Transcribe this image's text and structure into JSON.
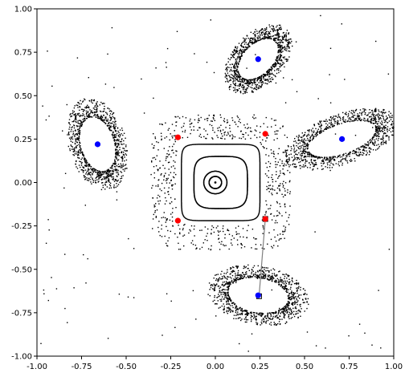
{
  "chart_data": {
    "type": "scatter",
    "xlim": [
      -1.0,
      1.0
    ],
    "ylim": [
      -1.0,
      1.0
    ],
    "grid": false,
    "x_ticks": [
      "-1.00",
      "-0.75",
      "-0.50",
      "-0.25",
      "0.00",
      "0.25",
      "0.50",
      "0.75",
      "1.00"
    ],
    "y_ticks": [
      "1.00",
      "0.75",
      "0.50",
      "0.25",
      "0.00",
      "-0.25",
      "-0.50",
      "-0.75",
      "-1.00"
    ],
    "tick_values": [
      -1.0,
      -0.75,
      -0.5,
      -0.25,
      0.0,
      0.25,
      0.5,
      0.75,
      1.0
    ],
    "colors": {
      "orbit": "#000000",
      "stable_points": "#0000ff",
      "unstable_points": "#ff0000",
      "trajectory_line": "#808080",
      "axes": "#000000",
      "background": "#ffffff"
    },
    "blue_points": [
      {
        "x": 0.0,
        "y": 0.0
      },
      {
        "x": 0.24,
        "y": 0.71
      },
      {
        "x": 0.71,
        "y": 0.25
      },
      {
        "x": -0.66,
        "y": 0.22
      },
      {
        "x": 0.24,
        "y": -0.65
      }
    ],
    "red_points": [
      {
        "x": -0.21,
        "y": 0.26
      },
      {
        "x": 0.28,
        "y": 0.28
      },
      {
        "x": -0.21,
        "y": -0.22
      },
      {
        "x": 0.28,
        "y": -0.21
      }
    ],
    "trajectory": [
      {
        "x": 0.28,
        "y": -0.21
      },
      {
        "x": 0.245,
        "y": -0.655
      }
    ],
    "closed_orbits": [
      {
        "kind": "circle",
        "radius": 0.035
      },
      {
        "kind": "circle",
        "radius": 0.065
      },
      {
        "kind": "rounded_square",
        "half_width": 0.15,
        "exponent": 4
      },
      {
        "kind": "rounded_square",
        "half_width": 0.22,
        "exponent": 8
      }
    ],
    "islands": [
      {
        "center": [
          0.24,
          0.71
        ],
        "angle_deg": 48,
        "rx": 0.14,
        "ry": 0.085
      },
      {
        "center": [
          0.71,
          0.25
        ],
        "angle_deg": 20,
        "rx": 0.2,
        "ry": 0.085
      },
      {
        "center": [
          -0.66,
          0.22
        ],
        "angle_deg": -75,
        "rx": 0.16,
        "ry": 0.095
      },
      {
        "center": [
          0.24,
          -0.65
        ],
        "angle_deg": -10,
        "rx": 0.17,
        "ry": 0.1
      }
    ]
  }
}
